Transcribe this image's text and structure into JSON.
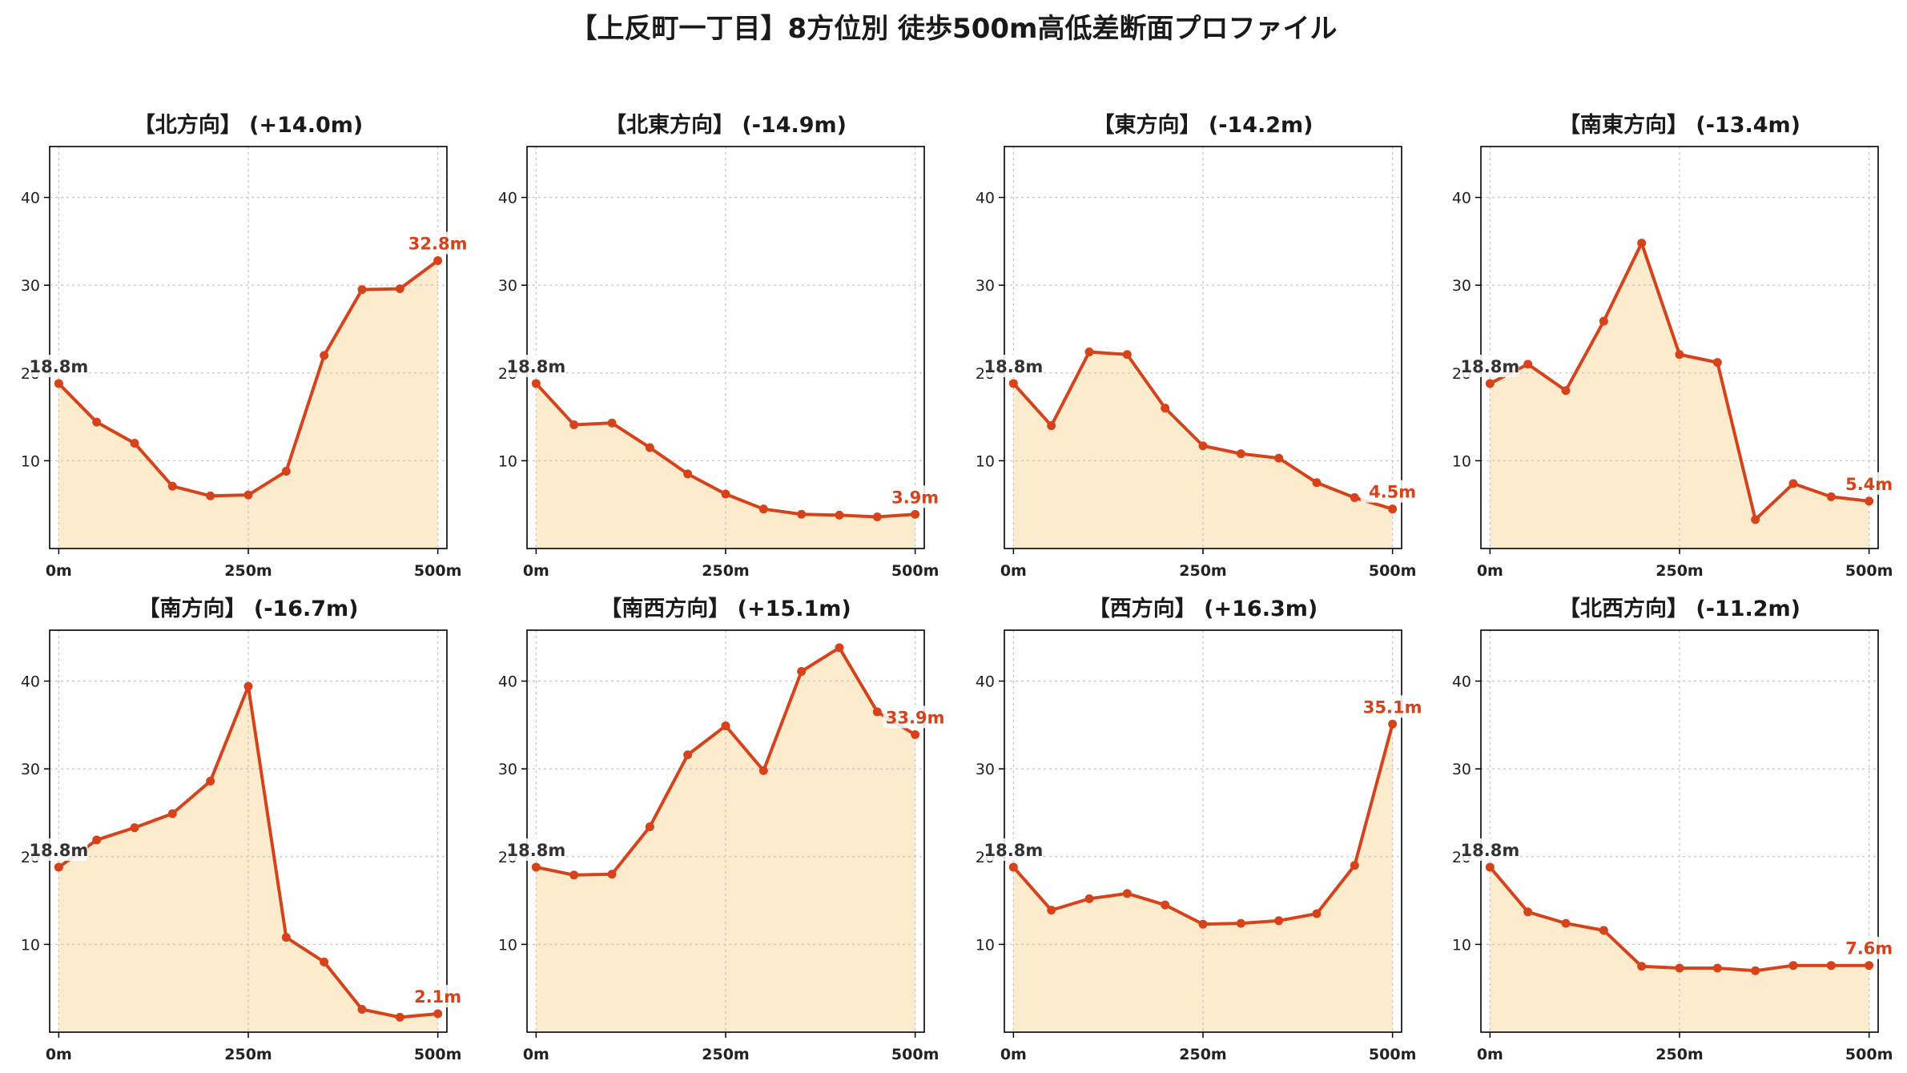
{
  "title": "【上反町一丁目】8方位別 徒歩500m高低差断面プロファイル",
  "colors": {
    "line": "#d6431b",
    "fill": "#fdebcd",
    "start_label": "#333333",
    "end_label": "#d6431b",
    "grid": "#c8c8c8",
    "axis": "#000000"
  },
  "chart_data": [
    {
      "type": "area",
      "title": "【北方向】 (+14.0m)",
      "x": [
        0,
        50,
        100,
        150,
        200,
        250,
        300,
        350,
        400,
        450,
        500
      ],
      "y": [
        18.8,
        14.4,
        12.0,
        7.1,
        6.0,
        6.1,
        8.8,
        22.0,
        29.5,
        29.6,
        32.8
      ],
      "start_label": "18.8m",
      "end_label": "32.8m",
      "xticks": [
        {
          "value": 0,
          "label": "0m"
        },
        {
          "value": 250,
          "label": "250m"
        },
        {
          "value": 500,
          "label": "500m"
        }
      ],
      "yticks": [
        10,
        20,
        30,
        40
      ],
      "xlim": [
        -12,
        512
      ],
      "ylim": [
        0,
        45.8
      ],
      "grid": true
    },
    {
      "type": "area",
      "title": "【北東方向】 (-14.9m)",
      "x": [
        0,
        50,
        100,
        150,
        200,
        250,
        300,
        350,
        400,
        450,
        500
      ],
      "y": [
        18.8,
        14.1,
        14.3,
        11.5,
        8.5,
        6.2,
        4.5,
        3.9,
        3.8,
        3.6,
        3.9
      ],
      "start_label": "18.8m",
      "end_label": "3.9m",
      "xticks": [
        {
          "value": 0,
          "label": "0m"
        },
        {
          "value": 250,
          "label": "250m"
        },
        {
          "value": 500,
          "label": "500m"
        }
      ],
      "yticks": [
        10,
        20,
        30,
        40
      ],
      "xlim": [
        -12,
        512
      ],
      "ylim": [
        0,
        45.8
      ],
      "grid": true
    },
    {
      "type": "area",
      "title": "【東方向】 (-14.2m)",
      "x": [
        0,
        50,
        100,
        150,
        200,
        250,
        300,
        350,
        400,
        450,
        500
      ],
      "y": [
        18.8,
        14.0,
        22.4,
        22.1,
        16.0,
        11.7,
        10.8,
        10.3,
        7.5,
        5.8,
        4.5
      ],
      "start_label": "18.8m",
      "end_label": "4.5m",
      "xticks": [
        {
          "value": 0,
          "label": "0m"
        },
        {
          "value": 250,
          "label": "250m"
        },
        {
          "value": 500,
          "label": "500m"
        }
      ],
      "yticks": [
        10,
        20,
        30,
        40
      ],
      "xlim": [
        -12,
        512
      ],
      "ylim": [
        0,
        45.8
      ],
      "grid": true
    },
    {
      "type": "area",
      "title": "【南東方向】 (-13.4m)",
      "x": [
        0,
        50,
        100,
        150,
        200,
        250,
        300,
        350,
        400,
        450,
        500
      ],
      "y": [
        18.8,
        21.0,
        18.0,
        25.9,
        34.8,
        22.1,
        21.2,
        3.3,
        7.4,
        5.9,
        5.4
      ],
      "start_label": "18.8m",
      "end_label": "5.4m",
      "xticks": [
        {
          "value": 0,
          "label": "0m"
        },
        {
          "value": 250,
          "label": "250m"
        },
        {
          "value": 500,
          "label": "500m"
        }
      ],
      "yticks": [
        10,
        20,
        30,
        40
      ],
      "xlim": [
        -12,
        512
      ],
      "ylim": [
        0,
        45.8
      ],
      "grid": true
    },
    {
      "type": "area",
      "title": "【南方向】 (-16.7m)",
      "x": [
        0,
        50,
        100,
        150,
        200,
        250,
        300,
        350,
        400,
        450,
        500
      ],
      "y": [
        18.8,
        21.9,
        23.3,
        24.9,
        28.6,
        39.4,
        10.8,
        8.0,
        2.6,
        1.7,
        2.1
      ],
      "start_label": "18.8m",
      "end_label": "2.1m",
      "xticks": [
        {
          "value": 0,
          "label": "0m"
        },
        {
          "value": 250,
          "label": "250m"
        },
        {
          "value": 500,
          "label": "500m"
        }
      ],
      "yticks": [
        10,
        20,
        30,
        40
      ],
      "xlim": [
        -12,
        512
      ],
      "ylim": [
        0,
        45.8
      ],
      "grid": true
    },
    {
      "type": "area",
      "title": "【南西方向】 (+15.1m)",
      "x": [
        0,
        50,
        100,
        150,
        200,
        250,
        300,
        350,
        400,
        450,
        500
      ],
      "y": [
        18.8,
        17.9,
        18.0,
        23.4,
        31.6,
        34.9,
        29.8,
        41.1,
        43.8,
        36.5,
        33.9
      ],
      "start_label": "18.8m",
      "end_label": "33.9m",
      "xticks": [
        {
          "value": 0,
          "label": "0m"
        },
        {
          "value": 250,
          "label": "250m"
        },
        {
          "value": 500,
          "label": "500m"
        }
      ],
      "yticks": [
        10,
        20,
        30,
        40
      ],
      "xlim": [
        -12,
        512
      ],
      "ylim": [
        0,
        45.8
      ],
      "grid": true
    },
    {
      "type": "area",
      "title": "【西方向】 (+16.3m)",
      "x": [
        0,
        50,
        100,
        150,
        200,
        250,
        300,
        350,
        400,
        450,
        500
      ],
      "y": [
        18.8,
        13.9,
        15.2,
        15.8,
        14.5,
        12.3,
        12.4,
        12.7,
        13.5,
        19.0,
        35.1
      ],
      "start_label": "18.8m",
      "end_label": "35.1m",
      "xticks": [
        {
          "value": 0,
          "label": "0m"
        },
        {
          "value": 250,
          "label": "250m"
        },
        {
          "value": 500,
          "label": "500m"
        }
      ],
      "yticks": [
        10,
        20,
        30,
        40
      ],
      "xlim": [
        -12,
        512
      ],
      "ylim": [
        0,
        45.8
      ],
      "grid": true
    },
    {
      "type": "area",
      "title": "【北西方向】 (-11.2m)",
      "x": [
        0,
        50,
        100,
        150,
        200,
        250,
        300,
        350,
        400,
        450,
        500
      ],
      "y": [
        18.8,
        13.7,
        12.4,
        11.6,
        7.5,
        7.3,
        7.3,
        7.0,
        7.6,
        7.6,
        7.6
      ],
      "start_label": "18.8m",
      "end_label": "7.6m",
      "xticks": [
        {
          "value": 0,
          "label": "0m"
        },
        {
          "value": 250,
          "label": "250m"
        },
        {
          "value": 500,
          "label": "500m"
        }
      ],
      "yticks": [
        10,
        20,
        30,
        40
      ],
      "xlim": [
        -12,
        512
      ],
      "ylim": [
        0,
        45.8
      ],
      "grid": true
    }
  ]
}
